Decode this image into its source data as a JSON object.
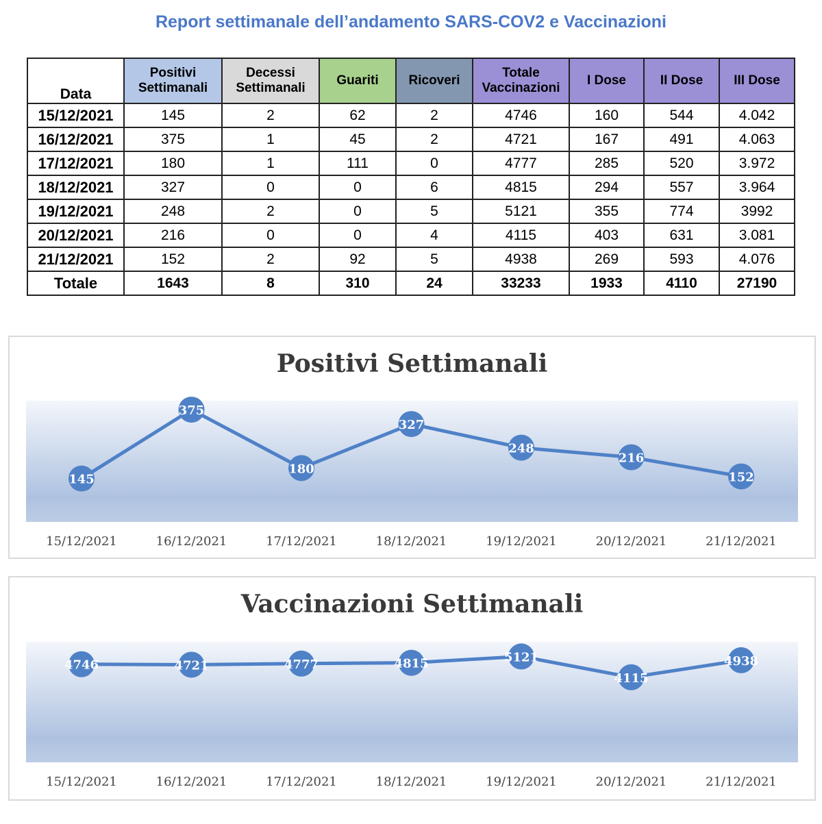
{
  "title": "Report settimanale dell’andamento SARS-COV2 e Vaccinazioni",
  "table": {
    "headers": [
      {
        "label": "Data",
        "color": "#ffffff"
      },
      {
        "label": "Positivi Settimanali",
        "color": "#b4c7e7"
      },
      {
        "label": "Decessi Settimanali",
        "color": "#d9d9d9"
      },
      {
        "label": "Guariti",
        "color": "#a9d18e"
      },
      {
        "label": "Ricoveri",
        "color": "#8497b0"
      },
      {
        "label": "Totale Vaccinazioni",
        "color": "#9b8fd6"
      },
      {
        "label": "I Dose",
        "color": "#9b8fd6"
      },
      {
        "label": "II Dose",
        "color": "#9b8fd6"
      },
      {
        "label": "III Dose",
        "color": "#9b8fd6"
      }
    ],
    "rows": [
      [
        "15/12/2021",
        "145",
        "2",
        "62",
        "2",
        "4746",
        "160",
        "544",
        "4.042"
      ],
      [
        "16/12/2021",
        "375",
        "1",
        "45",
        "2",
        "4721",
        "167",
        "491",
        "4.063"
      ],
      [
        "17/12/2021",
        "180",
        "1",
        "111",
        "0",
        "4777",
        "285",
        "520",
        "3.972"
      ],
      [
        "18/12/2021",
        "327",
        "0",
        "0",
        "6",
        "4815",
        "294",
        "557",
        "3.964"
      ],
      [
        "19/12/2021",
        "248",
        "2",
        "0",
        "5",
        "5121",
        "355",
        "774",
        "3992"
      ],
      [
        "20/12/2021",
        "216",
        "0",
        "0",
        "4",
        "4115",
        "403",
        "631",
        "3.081"
      ],
      [
        "21/12/2021",
        "152",
        "2",
        "92",
        "5",
        "4938",
        "269",
        "593",
        "4.076"
      ]
    ],
    "total": [
      "Totale",
      "1643",
      "8",
      "310",
      "24",
      "33233",
      "1933",
      "4110",
      "27190"
    ]
  },
  "chart_data": [
    {
      "type": "line",
      "title": "Positivi Settimanali",
      "categories": [
        "15/12/2021",
        "16/12/2021",
        "17/12/2021",
        "18/12/2021",
        "19/12/2021",
        "20/12/2021",
        "21/12/2021"
      ],
      "values": [
        145,
        375,
        180,
        327,
        248,
        216,
        152
      ],
      "ylim": [
        0,
        405
      ],
      "grid": false,
      "color": "#4f81c7"
    },
    {
      "type": "line",
      "title": "Vaccinazioni Settimanali",
      "categories": [
        "15/12/2021",
        "16/12/2021",
        "17/12/2021",
        "18/12/2021",
        "19/12/2021",
        "20/12/2021",
        "21/12/2021"
      ],
      "values": [
        4746,
        4721,
        4777,
        4815,
        5121,
        4115,
        4938
      ],
      "ylim": [
        0,
        5830
      ],
      "grid": false,
      "color": "#4f81c7"
    }
  ]
}
